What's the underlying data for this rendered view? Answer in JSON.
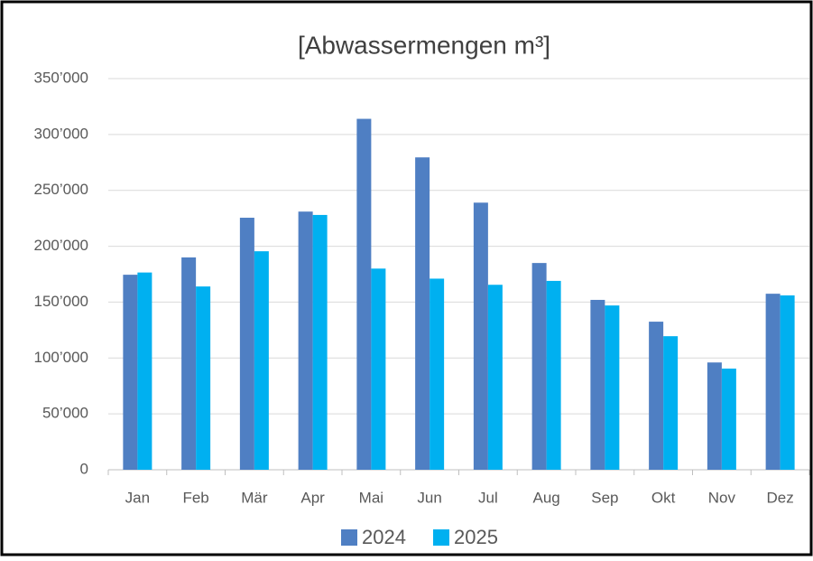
{
  "chart_data": {
    "type": "bar",
    "title": "[Abwassermengen m³]",
    "categories": [
      "Jan",
      "Feb",
      "Mär",
      "Apr",
      "Mai",
      "Jun",
      "Jul",
      "Aug",
      "Sep",
      "Okt",
      "Nov",
      "Dez"
    ],
    "series": [
      {
        "name": "2024",
        "color": "#4f7fc3",
        "values": [
          174500,
          190000,
          225500,
          231000,
          314000,
          279500,
          239000,
          185000,
          152000,
          132500,
          96000,
          157500
        ]
      },
      {
        "name": "2025",
        "color": "#00b0f0",
        "values": [
          176500,
          164000,
          195500,
          228000,
          180000,
          171000,
          165500,
          169000,
          147000,
          119500,
          90500,
          156000
        ]
      }
    ],
    "ylim": [
      0,
      350000
    ],
    "yticks": [
      0,
      {
        "value": 50000,
        "label": "50’000"
      },
      {
        "value": 100000,
        "label": "100’000"
      },
      {
        "value": 150000,
        "label": "150’000"
      },
      {
        "value": 200000,
        "label": "200’000"
      },
      {
        "value": 250000,
        "label": "250’000"
      },
      {
        "value": 300000,
        "label": "300’000"
      },
      {
        "value": 350000,
        "label": "350’000"
      }
    ],
    "grid": true,
    "legend": "bottom"
  }
}
